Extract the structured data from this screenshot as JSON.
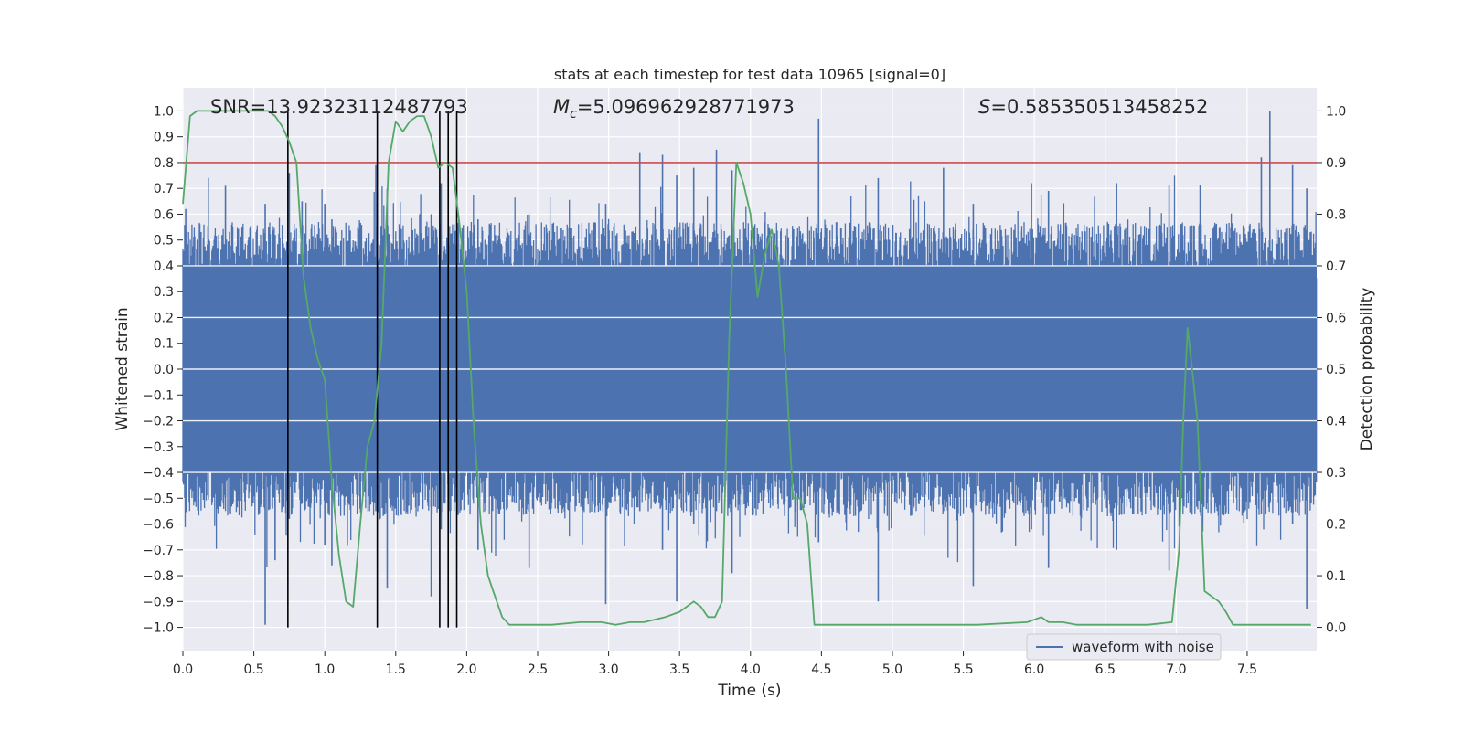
{
  "chart_data": {
    "type": "line",
    "title": "stats at each timestep for test data 10965 [signal=0]",
    "xlabel": "Time (s)",
    "ylabel_left": "Whitened strain",
    "ylabel_right": "Detection probability",
    "xlim": [
      0,
      7.99
    ],
    "ylim_left": [
      -1.09,
      1.09
    ],
    "ylim_right": [
      -0.045,
      1.045
    ],
    "x_ticks": [
      "0.0",
      "0.5",
      "1.0",
      "1.5",
      "2.0",
      "2.5",
      "3.0",
      "3.5",
      "4.0",
      "4.5",
      "5.0",
      "5.5",
      "6.0",
      "6.5",
      "7.0",
      "7.5"
    ],
    "y_ticks_left": [
      "1.0",
      "0.9",
      "0.8",
      "0.7",
      "0.6",
      "0.5",
      "0.4",
      "0.3",
      "0.2",
      "0.1",
      "0.0",
      "−0.1",
      "−0.2",
      "−0.3",
      "−0.4",
      "−0.5",
      "−0.6",
      "−0.7",
      "−0.8",
      "−0.9",
      "−1.0"
    ],
    "y_ticks_right": [
      "1.0",
      "0.9",
      "0.8",
      "0.7",
      "0.6",
      "0.5",
      "0.4",
      "0.3",
      "0.2",
      "0.1",
      "0.0"
    ],
    "annotations": {
      "snr": "SNR=13.92323112487793",
      "mc_symbol": "M",
      "mc_sub": "c",
      "mc_value": "=5.096962928771973",
      "s_symbol": "S",
      "s_value": "=0.585350513458252"
    },
    "legend": {
      "label": "waveform with noise",
      "placement": "bottom-right"
    },
    "threshold": {
      "value": 0.9,
      "axis": "right",
      "color": "#c44e52"
    },
    "vertical_markers": [
      0.74,
      1.37,
      1.81,
      1.87,
      1.93
    ],
    "strain_series": {
      "name": "waveform with noise",
      "color": "#4c72b0",
      "band": [
        -0.4,
        0.4
      ],
      "spikes": [
        [
          0.02,
          0.62,
          -0.45
        ],
        [
          0.3,
          0.71,
          -0.5
        ],
        [
          0.58,
          0.64,
          -0.99
        ],
        [
          0.65,
          0.52,
          -0.74
        ],
        [
          0.75,
          0.76,
          -0.58
        ],
        [
          0.84,
          0.65,
          -0.52
        ],
        [
          1.0,
          0.64,
          -0.68
        ],
        [
          1.05,
          0.58,
          -0.76
        ],
        [
          1.36,
          0.79,
          -0.55
        ],
        [
          1.44,
          0.7,
          -0.85
        ],
        [
          1.75,
          0.6,
          -0.88
        ],
        [
          1.82,
          0.72,
          -0.62
        ],
        [
          2.08,
          0.58,
          -0.7
        ],
        [
          2.44,
          0.6,
          -0.77
        ],
        [
          2.98,
          0.64,
          -0.91
        ],
        [
          3.22,
          0.84,
          -0.55
        ],
        [
          3.38,
          0.83,
          -0.7
        ],
        [
          3.48,
          0.75,
          -0.9
        ],
        [
          3.6,
          0.78,
          -0.6
        ],
        [
          3.76,
          0.85,
          -0.55
        ],
        [
          3.87,
          0.77,
          -0.79
        ],
        [
          4.48,
          0.97,
          -0.67
        ],
        [
          4.9,
          0.74,
          -0.9
        ],
        [
          5.36,
          0.78,
          -0.55
        ],
        [
          5.57,
          0.64,
          -0.84
        ],
        [
          5.98,
          0.72,
          -0.62
        ],
        [
          6.1,
          0.69,
          -0.77
        ],
        [
          6.58,
          0.72,
          -0.7
        ],
        [
          6.95,
          0.71,
          -0.78
        ],
        [
          7.6,
          0.82,
          -0.56
        ],
        [
          7.66,
          1.0,
          -0.52
        ],
        [
          7.82,
          0.79,
          -0.6
        ],
        [
          7.92,
          0.7,
          -0.93
        ]
      ]
    },
    "probability_series": {
      "name": "detection probability",
      "color": "#55a868",
      "x": [
        0.0,
        0.05,
        0.1,
        0.2,
        0.3,
        0.4,
        0.5,
        0.6,
        0.65,
        0.7,
        0.75,
        0.8,
        0.85,
        0.9,
        0.95,
        1.0,
        1.05,
        1.1,
        1.15,
        1.2,
        1.25,
        1.3,
        1.35,
        1.4,
        1.45,
        1.5,
        1.55,
        1.6,
        1.65,
        1.7,
        1.75,
        1.8,
        1.85,
        1.9,
        1.95,
        2.0,
        2.05,
        2.1,
        2.15,
        2.2,
        2.25,
        2.3,
        2.35,
        2.45,
        2.6,
        2.8,
        2.95,
        3.05,
        3.15,
        3.25,
        3.4,
        3.5,
        3.6,
        3.65,
        3.7,
        3.75,
        3.8,
        3.85,
        3.9,
        3.95,
        4.0,
        4.05,
        4.1,
        4.15,
        4.2,
        4.25,
        4.3,
        4.35,
        4.4,
        4.45,
        4.5,
        4.6,
        4.8,
        5.2,
        5.6,
        5.95,
        6.05,
        6.1,
        6.15,
        6.2,
        6.3,
        6.5,
        6.8,
        6.97,
        7.02,
        7.05,
        7.08,
        7.12,
        7.15,
        7.2,
        7.25,
        7.3,
        7.35,
        7.4,
        7.45,
        7.5,
        7.6,
        7.8,
        7.95
      ],
      "y": [
        0.82,
        0.99,
        1.0,
        1.0,
        1.0,
        1.0,
        1.0,
        1.0,
        0.99,
        0.97,
        0.94,
        0.9,
        0.68,
        0.58,
        0.52,
        0.48,
        0.28,
        0.14,
        0.05,
        0.04,
        0.2,
        0.35,
        0.4,
        0.55,
        0.9,
        0.98,
        0.96,
        0.98,
        0.99,
        0.99,
        0.95,
        0.89,
        0.9,
        0.89,
        0.78,
        0.65,
        0.39,
        0.2,
        0.1,
        0.06,
        0.02,
        0.005,
        0.005,
        0.005,
        0.005,
        0.01,
        0.01,
        0.005,
        0.01,
        0.01,
        0.02,
        0.03,
        0.05,
        0.04,
        0.02,
        0.02,
        0.05,
        0.56,
        0.9,
        0.86,
        0.8,
        0.64,
        0.72,
        0.77,
        0.7,
        0.5,
        0.25,
        0.25,
        0.2,
        0.005,
        0.005,
        0.005,
        0.005,
        0.005,
        0.005,
        0.01,
        0.02,
        0.01,
        0.01,
        0.01,
        0.005,
        0.005,
        0.005,
        0.01,
        0.15,
        0.4,
        0.58,
        0.48,
        0.4,
        0.07,
        0.06,
        0.05,
        0.03,
        0.005,
        0.005,
        0.005,
        0.005,
        0.005,
        0.005
      ]
    }
  }
}
